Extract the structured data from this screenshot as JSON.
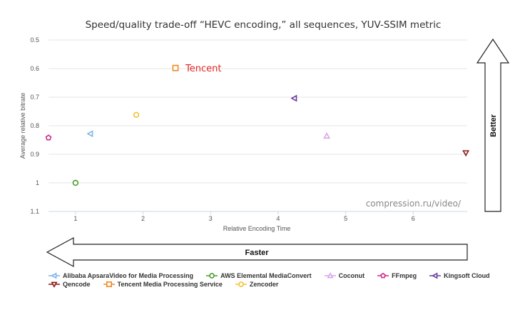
{
  "chart_data": {
    "type": "scatter",
    "title": "Speed/quality trade-off “HEVC encoding,” all sequences, YUV-SSIM metric",
    "xlabel": "Relative Encoding Time",
    "ylabel": "Average relative bitrate",
    "xlim": [
      0.6,
      6.8
    ],
    "ylim": [
      0.5,
      1.1
    ],
    "y_reversed": true,
    "x_ticks": [
      "1",
      "2",
      "3",
      "4",
      "5",
      "6"
    ],
    "y_ticks": [
      "0.5",
      "0.6",
      "0.7",
      "0.8",
      "0.9",
      "1",
      "1.1"
    ],
    "grid": "horizontal",
    "watermark": "compression.ru/video/",
    "highlight_label": "Tencent",
    "better_label": "Better",
    "faster_label": "Faster",
    "legend_position": "bottom",
    "series": [
      {
        "name": "Alibaba ApsaraVideo for Media Processing",
        "marker": "triangle-left",
        "color": "#7cb5ec",
        "x": 1.22,
        "y": 0.828
      },
      {
        "name": "AWS Elemental MediaConvert",
        "marker": "circle",
        "color": "#4a9e2f",
        "x": 1.0,
        "y": 1.0
      },
      {
        "name": "Coconut",
        "marker": "triangle-up",
        "color": "#d8a6e8",
        "x": 4.72,
        "y": 0.836
      },
      {
        "name": "FFmpeg",
        "marker": "pentagon",
        "color": "#cc2e8a",
        "x": 0.6,
        "y": 0.842
      },
      {
        "name": "Kingsoft Cloud",
        "marker": "triangle-left",
        "color": "#6a3d9a",
        "x": 4.24,
        "y": 0.704
      },
      {
        "name": "Qencode",
        "marker": "triangle-down",
        "color": "#8b1a1a",
        "x": 6.78,
        "y": 0.895
      },
      {
        "name": "Tencent Media Processing Service",
        "marker": "square",
        "color": "#f08a24",
        "x": 2.48,
        "y": 0.598
      },
      {
        "name": "Zencoder",
        "marker": "circle",
        "color": "#f5c030",
        "x": 1.9,
        "y": 0.762
      }
    ]
  }
}
